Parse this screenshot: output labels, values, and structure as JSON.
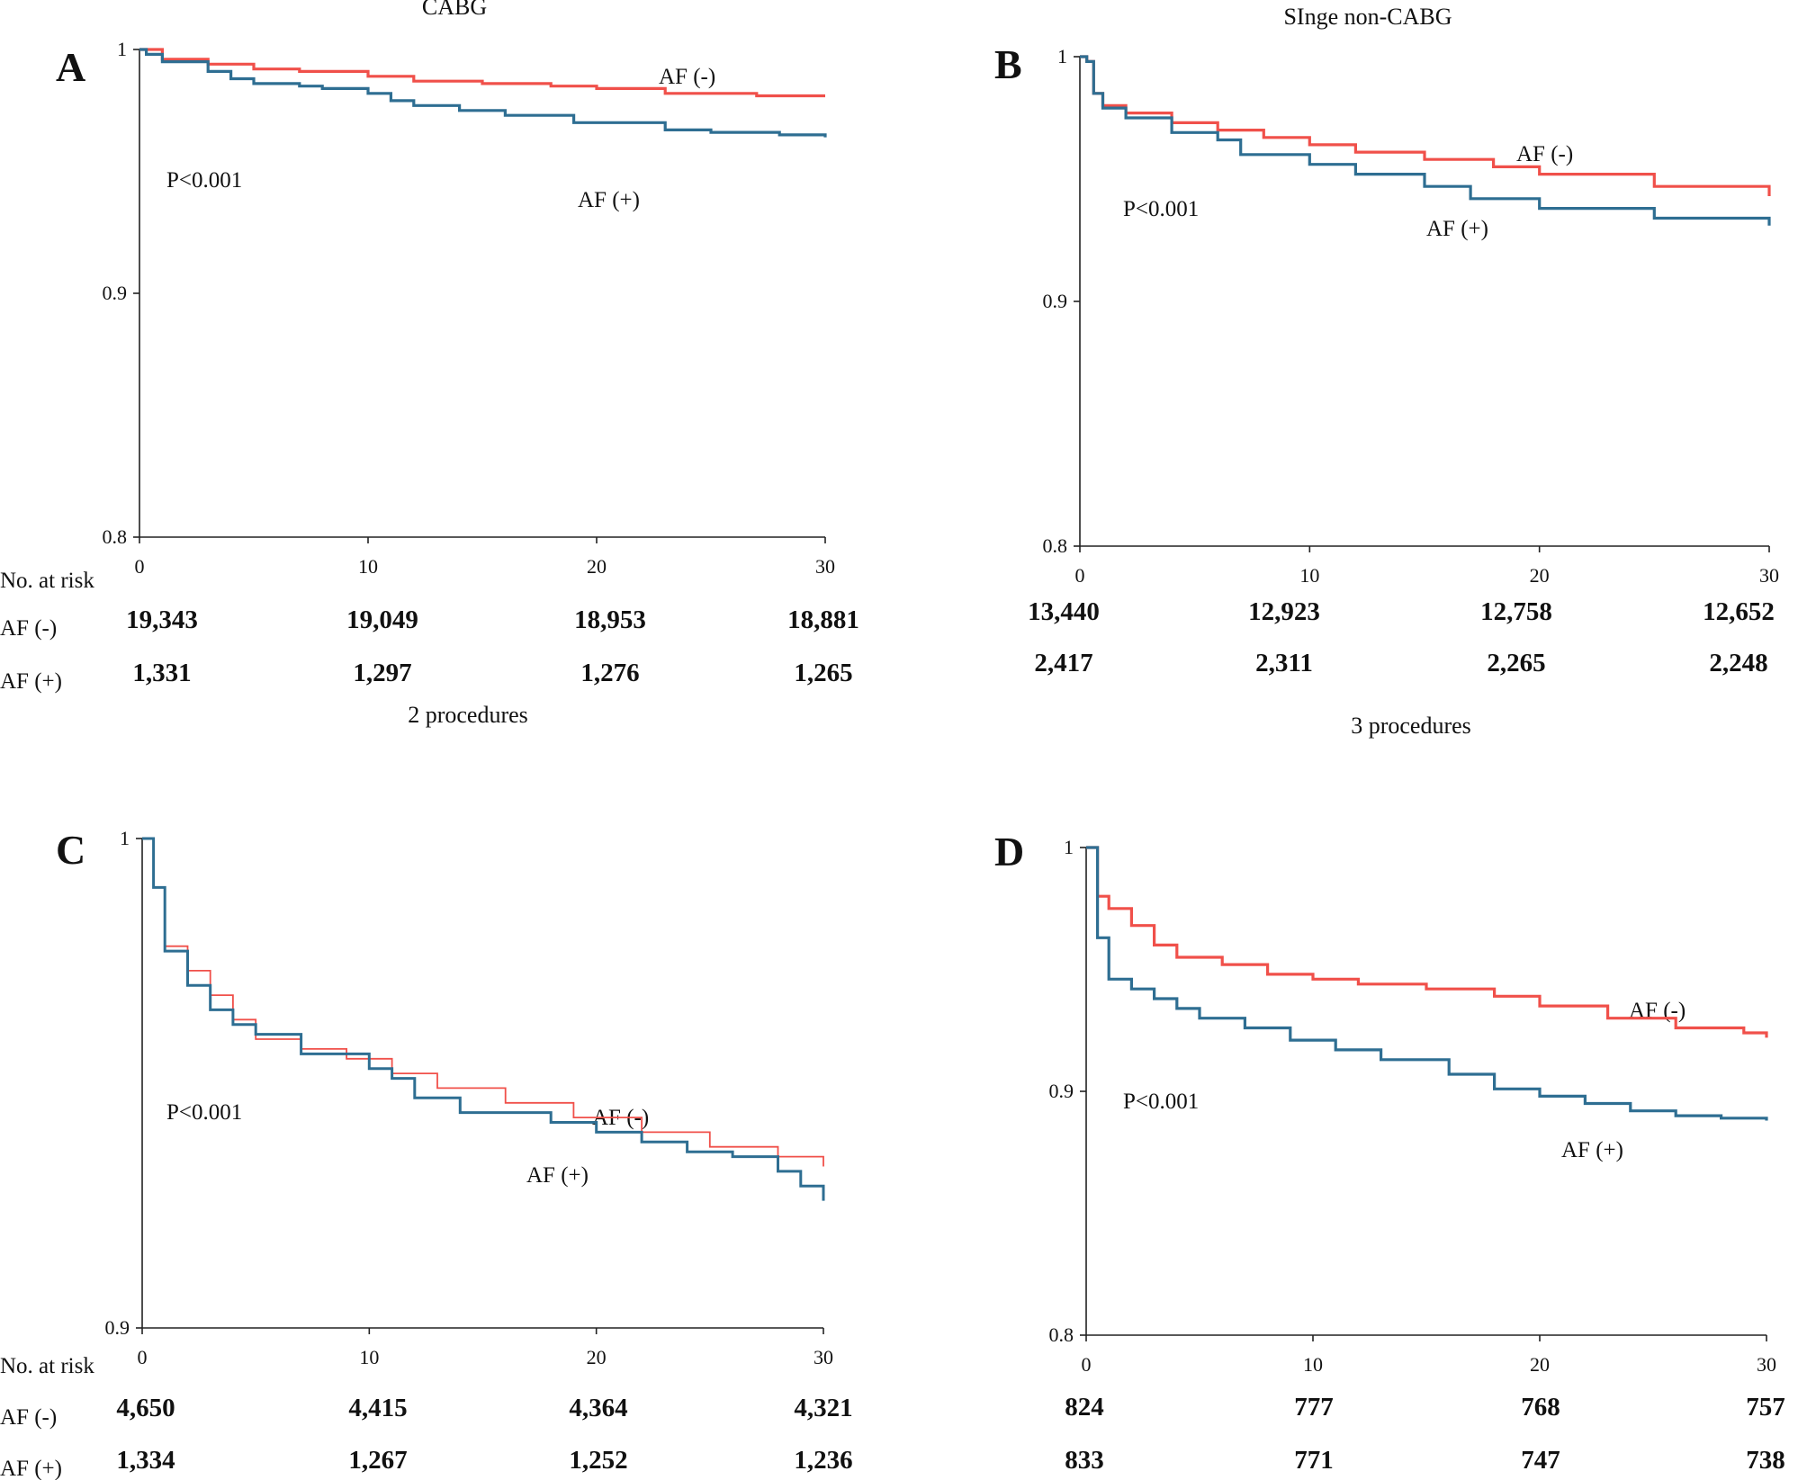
{
  "chart_data": [
    {
      "type": "line",
      "subtype": "kaplan-meier",
      "panel": "A",
      "title": "CABG",
      "xlim": [
        0,
        30
      ],
      "ylim": [
        0.8,
        1
      ],
      "xticks": [
        "0",
        "10",
        "20",
        "30"
      ],
      "yticks": [
        "0.8",
        "0.9",
        "1"
      ],
      "p_value": "P<0.001",
      "risk_header": "No. at risk",
      "risk_row_labels": [
        "AF (-)",
        "AF (+)"
      ],
      "series": [
        {
          "name": "AF (-)",
          "color": "#f0504a",
          "x": [
            0,
            1,
            3,
            5,
            7,
            10,
            12,
            15,
            18,
            20,
            23,
            27,
            30
          ],
          "y": [
            1.0,
            0.996,
            0.994,
            0.992,
            0.991,
            0.989,
            0.987,
            0.986,
            0.985,
            0.984,
            0.982,
            0.981,
            0.981
          ],
          "risk": [
            "19,343",
            "19,049",
            "18,953",
            "18,881"
          ]
        },
        {
          "name": "AF (+)",
          "color": "#2e6e92",
          "x": [
            0,
            0.3,
            1,
            3,
            4,
            5,
            7,
            8,
            10,
            11,
            12,
            14,
            16,
            19,
            23,
            25,
            28,
            30
          ],
          "y": [
            1.0,
            0.998,
            0.995,
            0.991,
            0.988,
            0.986,
            0.985,
            0.984,
            0.982,
            0.979,
            0.977,
            0.975,
            0.973,
            0.97,
            0.967,
            0.966,
            0.965,
            0.964
          ],
          "risk": [
            "1,331",
            "1,297",
            "1,276",
            "1,265"
          ]
        }
      ]
    },
    {
      "type": "line",
      "subtype": "kaplan-meier",
      "panel": "B",
      "title": "SInge non-CABG",
      "xlim": [
        0,
        30
      ],
      "ylim": [
        0.8,
        1
      ],
      "xticks": [
        "0",
        "10",
        "20",
        "30"
      ],
      "yticks": [
        "0.8",
        "0.9",
        "1"
      ],
      "p_value": "P<0.001",
      "risk_row_labels": [],
      "series": [
        {
          "name": "AF (-)",
          "color": "#f0504a",
          "x": [
            0,
            0.3,
            0.6,
            1,
            2,
            4,
            6,
            8,
            10,
            12,
            15,
            18,
            20,
            25,
            30
          ],
          "y": [
            1.0,
            0.998,
            0.985,
            0.98,
            0.977,
            0.973,
            0.97,
            0.967,
            0.964,
            0.961,
            0.958,
            0.955,
            0.952,
            0.947,
            0.943
          ],
          "risk": [
            "13,440",
            "12,923",
            "12,758",
            "12,652"
          ]
        },
        {
          "name": "AF (+)",
          "color": "#2e6e92",
          "x": [
            0,
            0.3,
            0.6,
            1,
            2,
            4,
            6,
            7,
            10,
            12,
            15,
            17,
            20,
            25,
            30
          ],
          "y": [
            1.0,
            0.998,
            0.985,
            0.979,
            0.975,
            0.969,
            0.966,
            0.96,
            0.956,
            0.952,
            0.947,
            0.942,
            0.938,
            0.934,
            0.931
          ],
          "risk": [
            "2,417",
            "2,311",
            "2,265",
            "2,248"
          ]
        }
      ]
    },
    {
      "type": "line",
      "subtype": "kaplan-meier",
      "panel": "C",
      "subtitle": "2 procedures",
      "xlim": [
        0,
        30
      ],
      "ylim": [
        0.9,
        1
      ],
      "xticks": [
        "0",
        "10",
        "20",
        "30"
      ],
      "yticks": [
        "0.9",
        "1"
      ],
      "p_value": "P<0.001",
      "risk_header": "No. at risk",
      "risk_row_labels": [
        "AF (-)",
        "AF (+)"
      ],
      "series": [
        {
          "name": "AF (-)",
          "color": "#f0504a",
          "x": [
            0,
            0.5,
            1,
            2,
            3,
            4,
            5,
            7,
            9,
            11,
            13,
            16,
            19,
            22,
            25,
            28,
            30
          ],
          "y": [
            1.0,
            0.99,
            0.978,
            0.973,
            0.968,
            0.963,
            0.959,
            0.957,
            0.955,
            0.952,
            0.949,
            0.946,
            0.943,
            0.94,
            0.937,
            0.935,
            0.933
          ],
          "risk": [
            "4,650",
            "4,415",
            "4,364",
            "4,321"
          ]
        },
        {
          "name": "AF (+)",
          "color": "#2e6e92",
          "x": [
            0,
            0.5,
            1,
            2,
            3,
            4,
            5,
            7,
            10,
            11,
            12,
            14,
            18,
            20,
            22,
            24,
            26,
            28,
            29,
            30
          ],
          "y": [
            1.0,
            0.99,
            0.977,
            0.97,
            0.965,
            0.962,
            0.96,
            0.956,
            0.953,
            0.951,
            0.947,
            0.944,
            0.942,
            0.94,
            0.938,
            0.936,
            0.935,
            0.932,
            0.929,
            0.926
          ],
          "risk": [
            "1,334",
            "1,267",
            "1,252",
            "1,236"
          ]
        }
      ]
    },
    {
      "type": "line",
      "subtype": "kaplan-meier",
      "panel": "D",
      "subtitle": "3 procedures",
      "xlim": [
        0,
        30
      ],
      "ylim": [
        0.8,
        1
      ],
      "xticks": [
        "0",
        "10",
        "20",
        "30"
      ],
      "yticks": [
        "0.8",
        "0.9",
        "1"
      ],
      "p_value": "P<0.001",
      "risk_row_labels": [],
      "series": [
        {
          "name": "AF (-)",
          "color": "#f0504a",
          "x": [
            0,
            0.5,
            1,
            2,
            3,
            4,
            6,
            8,
            10,
            12,
            15,
            18,
            20,
            23,
            26,
            29,
            30
          ],
          "y": [
            1.0,
            0.98,
            0.975,
            0.968,
            0.96,
            0.955,
            0.952,
            0.948,
            0.946,
            0.944,
            0.942,
            0.939,
            0.935,
            0.93,
            0.926,
            0.924,
            0.922
          ],
          "risk": [
            "824",
            "777",
            "768",
            "757"
          ]
        },
        {
          "name": "AF (+)",
          "color": "#2e6e92",
          "x": [
            0,
            0.5,
            1,
            2,
            3,
            4,
            5,
            7,
            9,
            11,
            13,
            16,
            18,
            20,
            22,
            24,
            26,
            28,
            30
          ],
          "y": [
            1.0,
            0.963,
            0.946,
            0.942,
            0.938,
            0.934,
            0.93,
            0.926,
            0.921,
            0.917,
            0.913,
            0.907,
            0.901,
            0.898,
            0.895,
            0.892,
            0.89,
            0.889,
            0.888
          ],
          "risk": [
            "833",
            "771",
            "747",
            "738"
          ]
        }
      ]
    }
  ]
}
